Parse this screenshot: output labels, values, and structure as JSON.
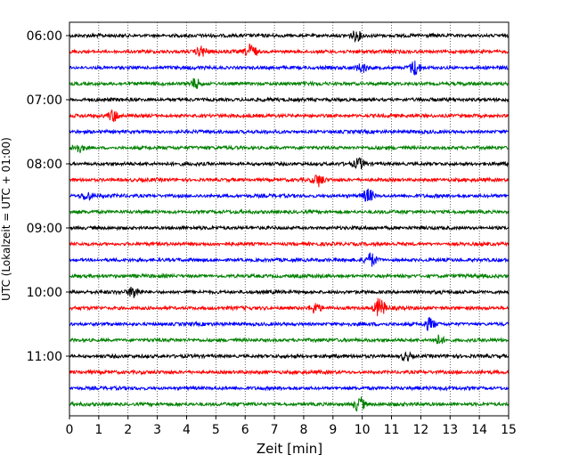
{
  "chart_data": {
    "type": "line",
    "title": "",
    "xlabel": "Zeit  [min]",
    "ylabel": "UTC (Lokalzeit = UTC + 01:00)",
    "xlim": [
      0,
      15
    ],
    "xticks": [
      0,
      1,
      2,
      3,
      4,
      5,
      6,
      7,
      8,
      9,
      10,
      11,
      12,
      13,
      14,
      15
    ],
    "xgrid": "dotted vertical lines at each minute",
    "row_interval_minutes": 15,
    "row_start": "06:00",
    "rows": [
      "06:00",
      "06:15",
      "06:30",
      "06:45",
      "07:00",
      "07:15",
      "07:30",
      "07:45",
      "08:00",
      "08:15",
      "08:30",
      "08:45",
      "09:00",
      "09:15",
      "09:30",
      "09:45",
      "10:00",
      "10:15",
      "10:30",
      "10:45",
      "11:00",
      "11:15",
      "11:30",
      "11:45"
    ],
    "ytick_labels": [
      "06:00",
      "07:00",
      "08:00",
      "09:00",
      "10:00",
      "11:00"
    ],
    "ytick_rows": [
      0,
      4,
      8,
      12,
      16,
      20
    ],
    "color_cycle": [
      "#000000",
      "#ff0000",
      "#0000ff",
      "#008000"
    ],
    "events": [
      {
        "row": 0,
        "minute": 9.8,
        "amplitude": 0.55
      },
      {
        "row": 1,
        "minute": 4.5,
        "amplitude": 0.6
      },
      {
        "row": 1,
        "minute": 6.2,
        "amplitude": 0.9
      },
      {
        "row": 2,
        "minute": 10.0,
        "amplitude": 0.5
      },
      {
        "row": 2,
        "minute": 11.8,
        "amplitude": 0.9
      },
      {
        "row": 3,
        "minute": 4.3,
        "amplitude": 0.6
      },
      {
        "row": 5,
        "minute": 1.5,
        "amplitude": 0.7
      },
      {
        "row": 7,
        "minute": 0.3,
        "amplitude": 0.5
      },
      {
        "row": 8,
        "minute": 9.9,
        "amplitude": 0.6
      },
      {
        "row": 9,
        "minute": 8.5,
        "amplitude": 0.7
      },
      {
        "row": 10,
        "minute": 0.6,
        "amplitude": 0.5
      },
      {
        "row": 10,
        "minute": 10.2,
        "amplitude": 0.8
      },
      {
        "row": 14,
        "minute": 10.3,
        "amplitude": 0.8
      },
      {
        "row": 16,
        "minute": 2.2,
        "amplitude": 0.7
      },
      {
        "row": 17,
        "minute": 8.4,
        "amplitude": 0.6
      },
      {
        "row": 17,
        "minute": 10.6,
        "amplitude": 1.2
      },
      {
        "row": 18,
        "minute": 12.3,
        "amplitude": 0.7
      },
      {
        "row": 19,
        "minute": 12.6,
        "amplitude": 0.6
      },
      {
        "row": 20,
        "minute": 11.5,
        "amplitude": 0.5
      },
      {
        "row": 23,
        "minute": 9.9,
        "amplitude": 0.9
      }
    ]
  }
}
